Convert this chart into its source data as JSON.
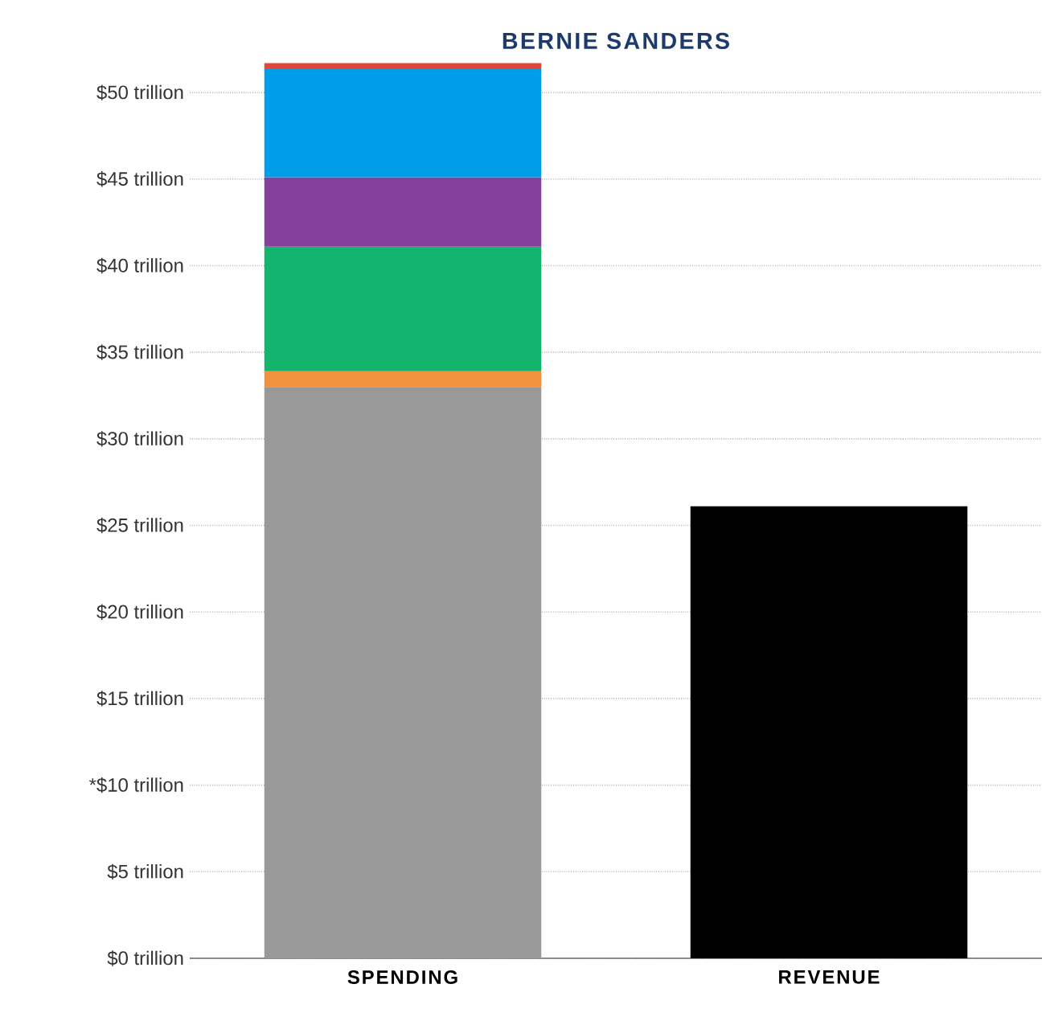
{
  "chart_data": {
    "type": "bar",
    "title": "BERNIE SANDERS",
    "categories": [
      "SPENDING",
      "REVENUE"
    ],
    "stacked": true,
    "grid": "y",
    "ylim": [
      0,
      52
    ],
    "yticks": [
      {
        "value": 0,
        "label": "$0 trillion"
      },
      {
        "value": 5,
        "label": "$5 trillion"
      },
      {
        "value": 10,
        "label": "*$10 trillion"
      },
      {
        "value": 15,
        "label": "$15 trillion"
      },
      {
        "value": 20,
        "label": "$20 trillion"
      },
      {
        "value": 25,
        "label": "$25 trillion"
      },
      {
        "value": 30,
        "label": "$30 trillion"
      },
      {
        "value": 35,
        "label": "$35 trillion"
      },
      {
        "value": 40,
        "label": "$40 trillion"
      },
      {
        "value": 45,
        "label": "$45 trillion"
      },
      {
        "value": 50,
        "label": "$50 trillion"
      }
    ],
    "series": [
      {
        "color": "#999999",
        "values": [
          33.0,
          null
        ]
      },
      {
        "color": "#f0923e",
        "values": [
          0.9,
          null
        ]
      },
      {
        "color": "#13b56e",
        "values": [
          7.2,
          null
        ]
      },
      {
        "color": "#85409b",
        "values": [
          4.0,
          null
        ]
      },
      {
        "color": "#009ee8",
        "values": [
          6.3,
          null
        ]
      },
      {
        "color": "#e0463a",
        "values": [
          0.3,
          null
        ]
      },
      {
        "color": "#000000",
        "values": [
          null,
          26.1
        ]
      }
    ]
  }
}
